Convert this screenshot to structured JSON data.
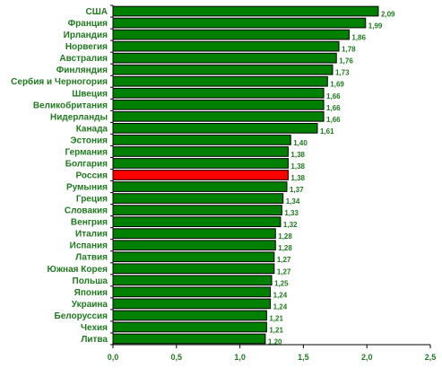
{
  "chart_data": {
    "type": "bar",
    "orientation": "horizontal",
    "categories": [
      "США",
      "Франция",
      "Ирландия",
      "Норвегия",
      "Австралия",
      "Финляндия",
      "Сербия и Черногория",
      "Швеция",
      "Великобритания",
      "Нидерланды",
      "Канада",
      "Эстония",
      "Германия",
      "Болгария",
      "Россия",
      "Румыния",
      "Греция",
      "Словакия",
      "Венгрия",
      "Италия",
      "Испания",
      "Латвия",
      "Южная Корея",
      "Польша",
      "Япония",
      "Украина",
      "Белоруссия",
      "Чехия",
      "Литва"
    ],
    "values": [
      2.09,
      1.99,
      1.86,
      1.78,
      1.76,
      1.73,
      1.69,
      1.66,
      1.66,
      1.66,
      1.61,
      1.4,
      1.38,
      1.38,
      1.38,
      1.37,
      1.34,
      1.33,
      1.32,
      1.28,
      1.28,
      1.27,
      1.27,
      1.25,
      1.24,
      1.24,
      1.21,
      1.21,
      1.2
    ],
    "value_labels": [
      "2,09",
      "1,99",
      "1,86",
      "1,78",
      "1,76",
      "1,73",
      "1,69",
      "1,66",
      "1,66",
      "1,66",
      "1,61",
      "1,40",
      "1,38",
      "1,38",
      "1,38",
      "1,37",
      "1,34",
      "1,33",
      "1,32",
      "1,28",
      "1,28",
      "1,27",
      "1,27",
      "1,25",
      "1,24",
      "1,24",
      "1,21",
      "1,21",
      "1,20"
    ],
    "highlight_category": "Россия",
    "xlim": [
      0,
      2.5
    ],
    "x_ticks": [
      0,
      0.5,
      1,
      1.5,
      2,
      2.5
    ],
    "x_tick_labels": [
      "0,0",
      "0,5",
      "1,0",
      "1,5",
      "2,0",
      "2,5"
    ],
    "grid": false,
    "colors": {
      "bar": "#008000",
      "highlight": "#ff0000",
      "text": "#1f7a1f",
      "axis": "#000000"
    }
  }
}
